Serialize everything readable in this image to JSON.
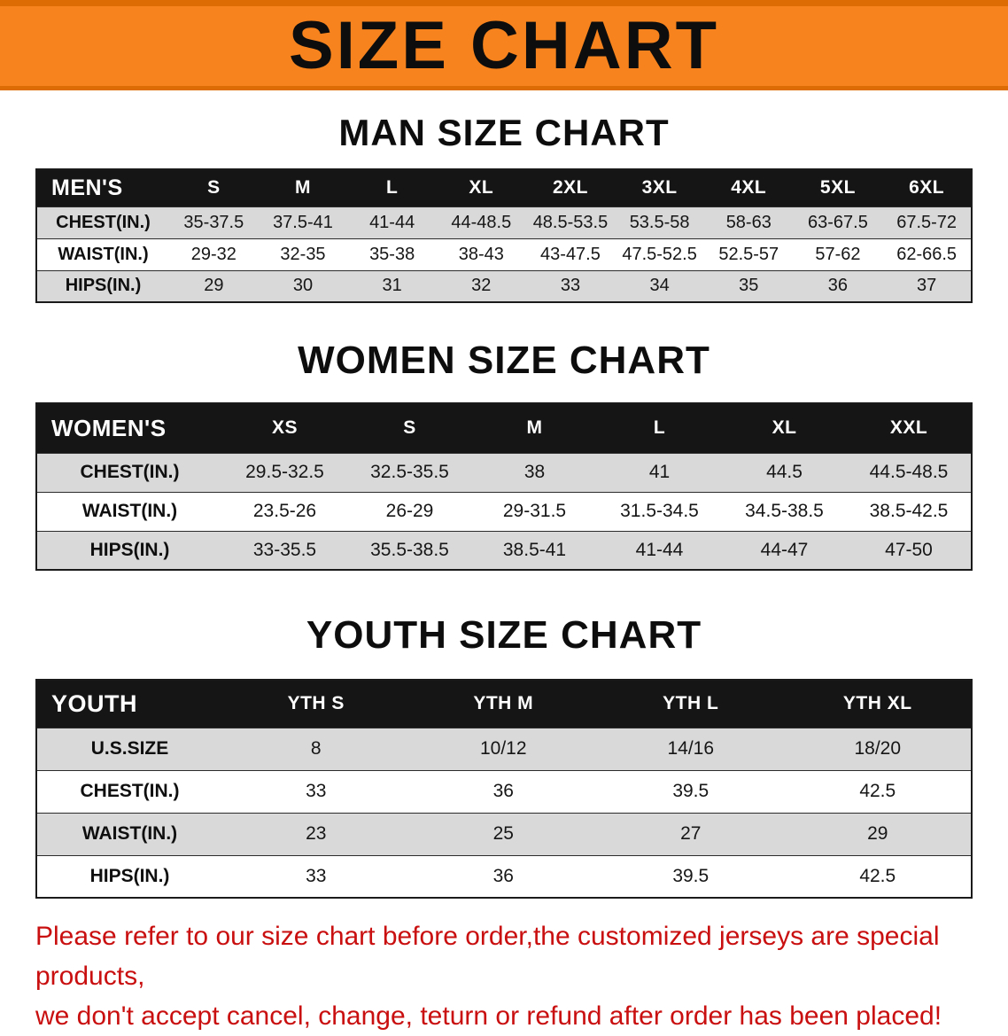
{
  "colors": {
    "banner_bg": "#f6831d",
    "banner_edge": "#dd6c05",
    "header_bg": "#151515",
    "row_gray": "#d9d9d9",
    "row_white": "#ffffff",
    "table_border": "#1a1a1a",
    "text_black": "#0d0d0d",
    "disclaimer_red": "#c90f0f"
  },
  "banner": {
    "title": "SIZE CHART"
  },
  "sections": [
    {
      "id": "men",
      "heading": "MAN SIZE CHART",
      "label_col": "MEN'S",
      "columns": [
        "S",
        "M",
        "L",
        "XL",
        "2XL",
        "3XL",
        "4XL",
        "5XL",
        "6XL"
      ],
      "rows": [
        {
          "label": "CHEST(IN.)",
          "values": [
            "35-37.5",
            "37.5-41",
            "41-44",
            "44-48.5",
            "48.5-53.5",
            "53.5-58",
            "58-63",
            "63-67.5",
            "67.5-72"
          ]
        },
        {
          "label": "WAIST(IN.)",
          "values": [
            "29-32",
            "32-35",
            "35-38",
            "38-43",
            "43-47.5",
            "47.5-52.5",
            "52.5-57",
            "57-62",
            "62-66.5"
          ]
        },
        {
          "label": "HIPS(IN.)",
          "values": [
            "29",
            "30",
            "31",
            "32",
            "33",
            "34",
            "35",
            "36",
            "37"
          ]
        }
      ]
    },
    {
      "id": "women",
      "heading": "WOMEN SIZE CHART",
      "label_col": "WOMEN'S",
      "columns": [
        "XS",
        "S",
        "M",
        "L",
        "XL",
        "XXL"
      ],
      "rows": [
        {
          "label": "CHEST(IN.)",
          "values": [
            "29.5-32.5",
            "32.5-35.5",
            "38",
            "41",
            "44.5",
            "44.5-48.5"
          ]
        },
        {
          "label": "WAIST(IN.)",
          "values": [
            "23.5-26",
            "26-29",
            "29-31.5",
            "31.5-34.5",
            "34.5-38.5",
            "38.5-42.5"
          ]
        },
        {
          "label": "HIPS(IN.)",
          "values": [
            "33-35.5",
            "35.5-38.5",
            "38.5-41",
            "41-44",
            "44-47",
            "47-50"
          ]
        }
      ]
    },
    {
      "id": "youth",
      "heading": "YOUTH SIZE CHART",
      "label_col": "YOUTH",
      "columns": [
        "YTH S",
        "YTH M",
        "YTH L",
        "YTH XL"
      ],
      "rows": [
        {
          "label": "U.S.SIZE",
          "values": [
            "8",
            "10/12",
            "14/16",
            "18/20"
          ]
        },
        {
          "label": "CHEST(IN.)",
          "values": [
            "33",
            "36",
            "39.5",
            "42.5"
          ]
        },
        {
          "label": "WAIST(IN.)",
          "values": [
            "23",
            "25",
            "27",
            "29"
          ]
        },
        {
          "label": "HIPS(IN.)",
          "values": [
            "33",
            "36",
            "39.5",
            "42.5"
          ]
        }
      ]
    }
  ],
  "disclaimer": {
    "line1": "Please refer to our size chart before order,the customized jerseys are special products,",
    "line2": "we don't accept cancel, change, teturn or refund after order has been placed!"
  }
}
